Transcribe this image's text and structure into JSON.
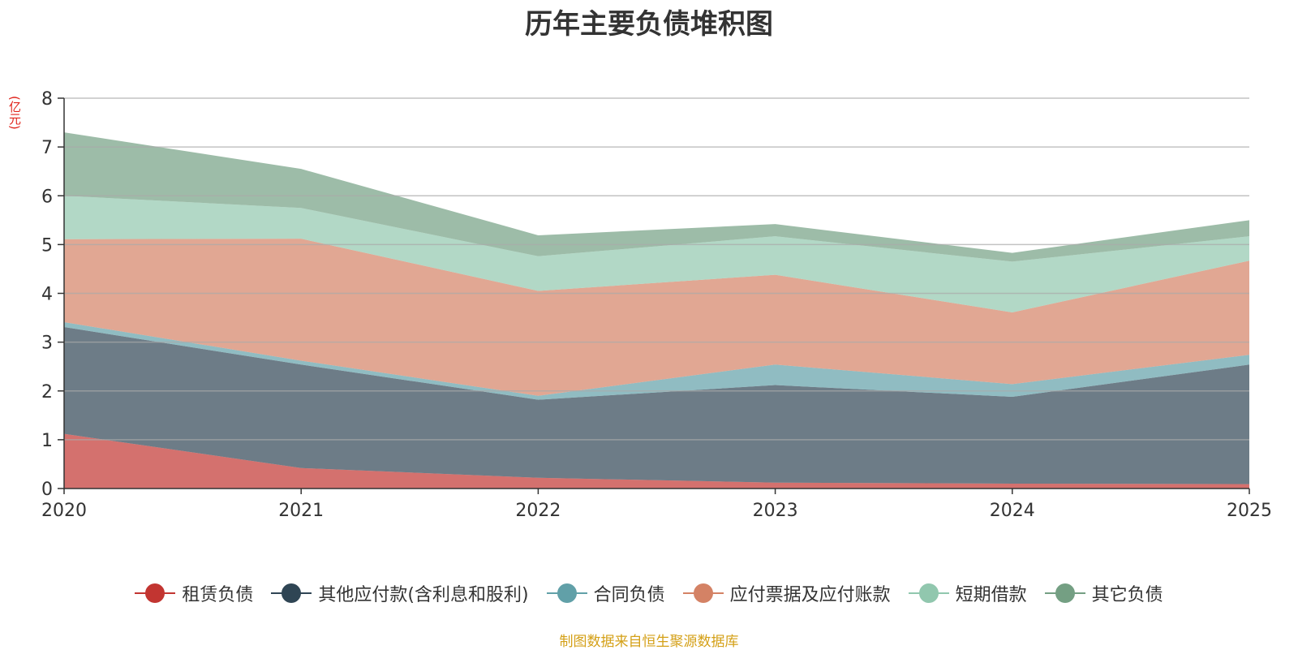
{
  "chart_data": {
    "type": "area",
    "stacked": true,
    "title": "历年主要负债堆积图",
    "ylabel": "(亿元)",
    "xlabel": "",
    "ylim": [
      0,
      8
    ],
    "yticks": [
      0,
      1,
      2,
      3,
      4,
      5,
      6,
      7,
      8
    ],
    "categories": [
      "2020",
      "2021",
      "2022",
      "2023",
      "2024",
      "2025"
    ],
    "grid": true,
    "legend_position": "bottom",
    "series": [
      {
        "name": "租赁负债",
        "color": "#c23531",
        "values": [
          1.12,
          0.42,
          0.22,
          0.12,
          0.1,
          0.09
        ]
      },
      {
        "name": "其他应付款(含利息和股利)",
        "color": "#2f4554",
        "values": [
          2.19,
          2.12,
          1.6,
          2.0,
          1.78,
          2.45
        ]
      },
      {
        "name": "合同负债",
        "color": "#61a0a8",
        "values": [
          0.1,
          0.08,
          0.08,
          0.42,
          0.26,
          0.2
        ]
      },
      {
        "name": "应付票据及应付账款",
        "color": "#d48265",
        "values": [
          1.7,
          2.5,
          2.15,
          1.84,
          1.47,
          1.93
        ]
      },
      {
        "name": "短期借款",
        "color": "#91c7ae",
        "values": [
          0.89,
          0.63,
          0.71,
          0.79,
          1.04,
          0.5
        ]
      },
      {
        "name": "其它负债",
        "color": "#749f83",
        "values": [
          1.3,
          0.8,
          0.43,
          0.25,
          0.18,
          0.33
        ]
      }
    ]
  },
  "source_note": "制图数据来自恒生聚源数据库"
}
